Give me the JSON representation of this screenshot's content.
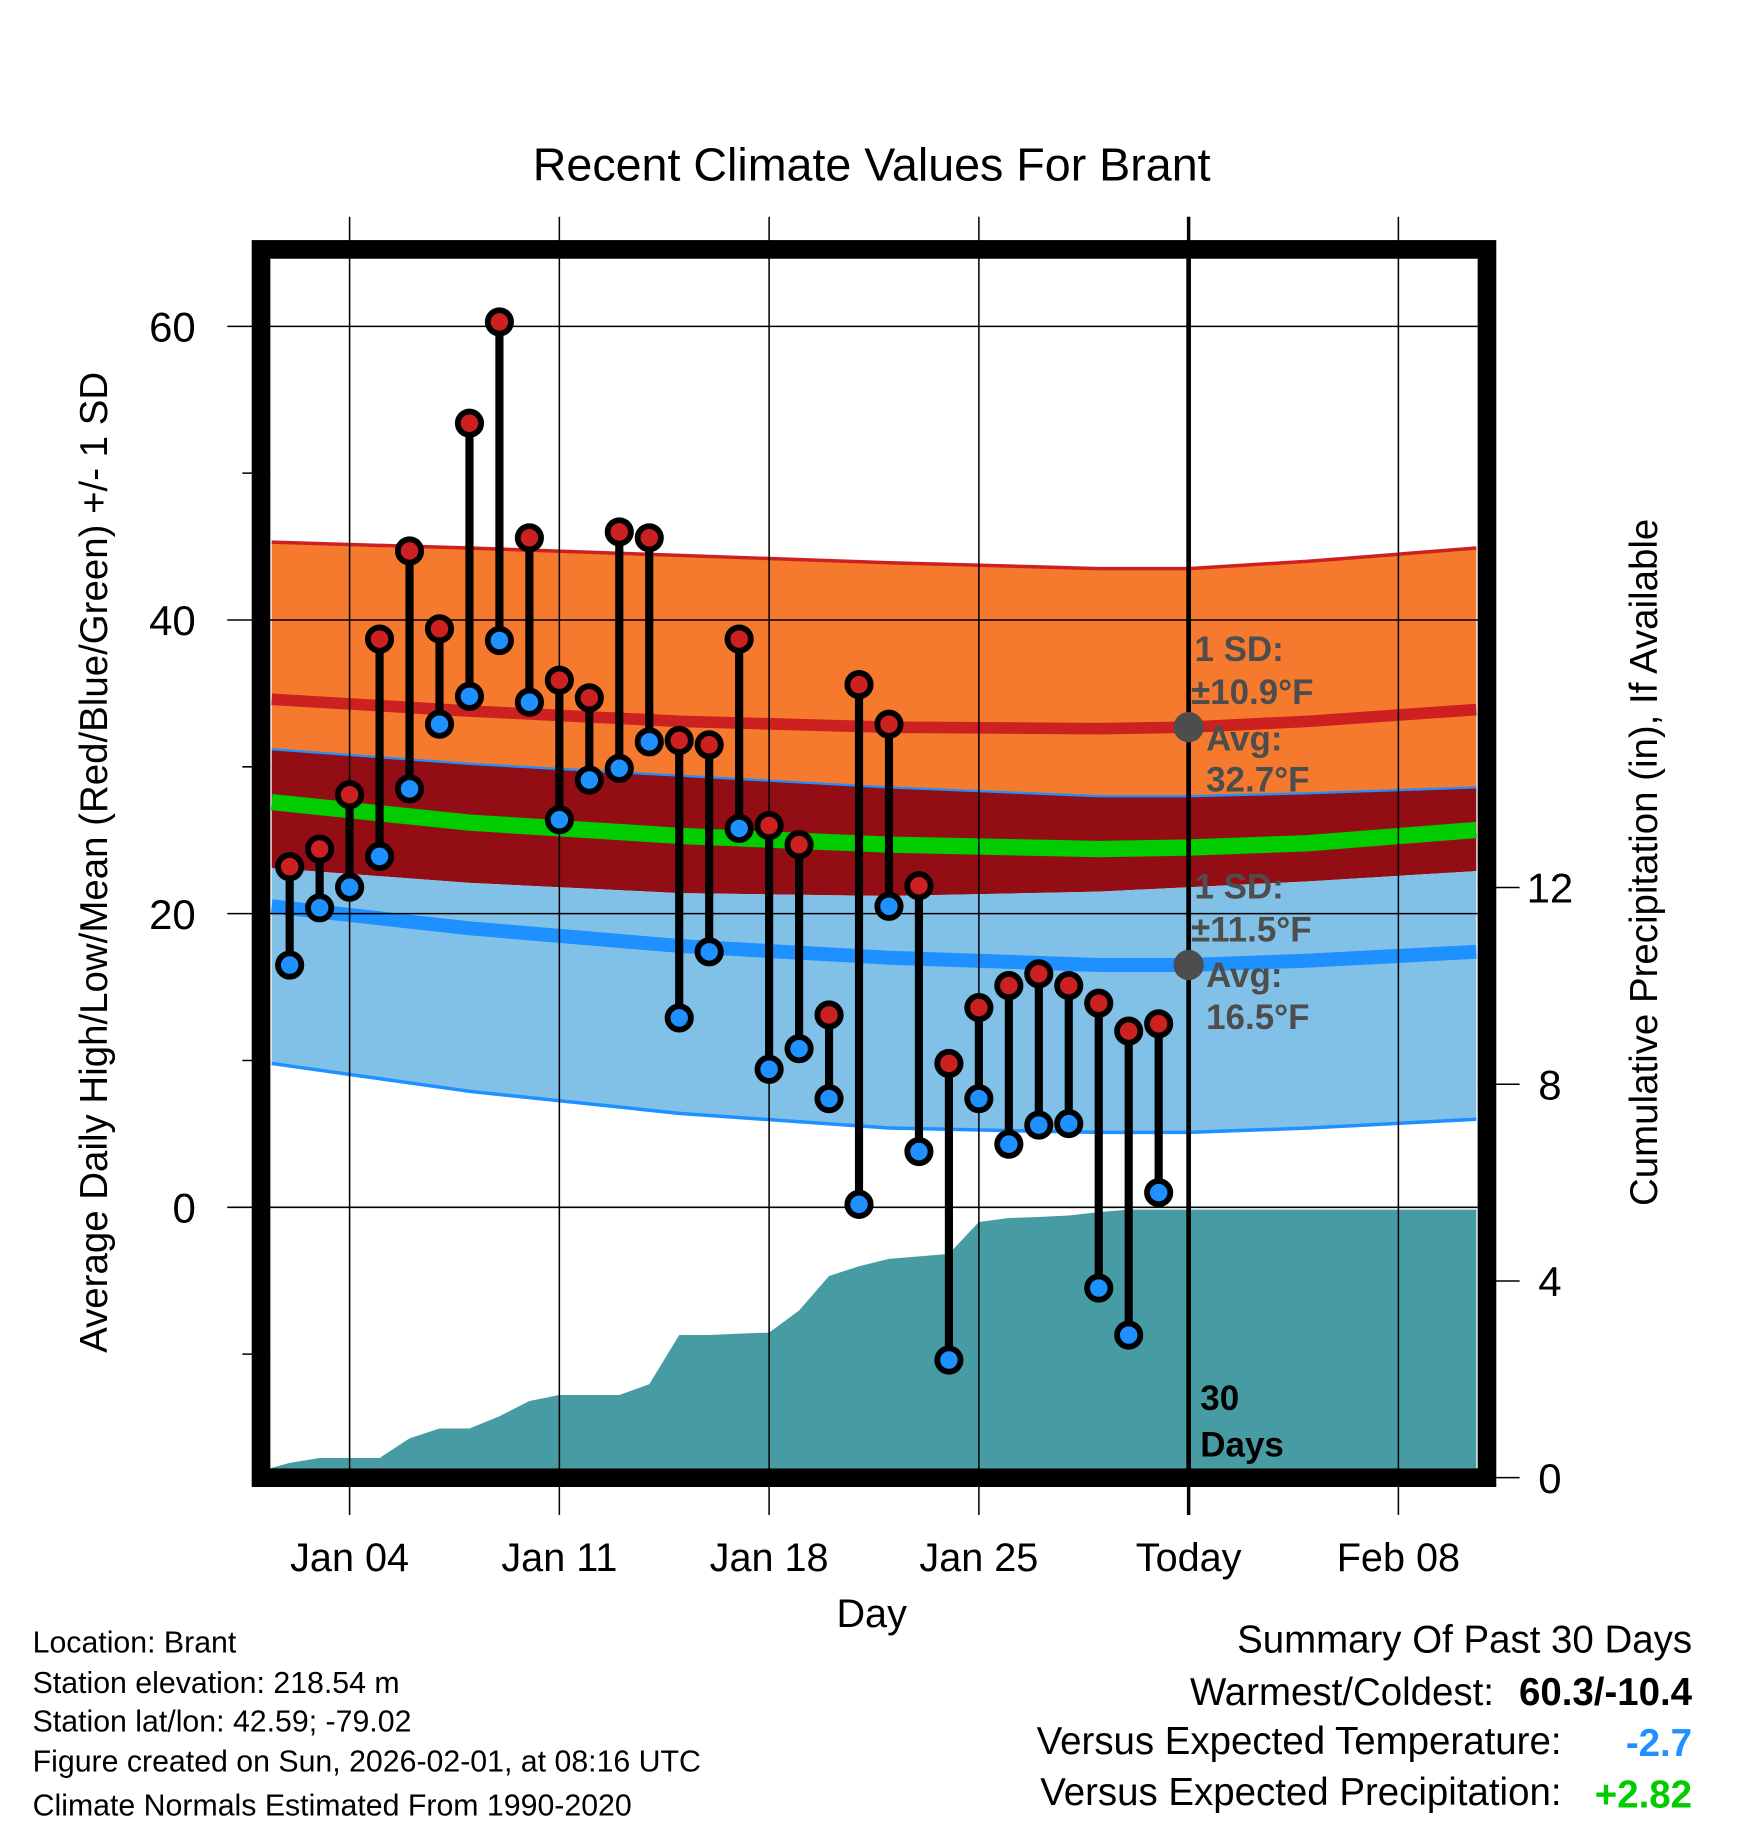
{
  "chart_data": {
    "type": "line",
    "title": "Recent Climate Values For Brant",
    "xlabel": "Day",
    "ylabel": "Average Daily High/Low/Mean (Red/Blue/Green) +/- 1 SD",
    "y2label": "Cumulative Precipitation (in), If Available",
    "ylim": [
      -17.8,
      64.6
    ],
    "y2lim": [
      0,
      24.8
    ],
    "yticks": [
      0,
      20,
      40,
      60
    ],
    "y_minor_ticks": [
      -10,
      10,
      30,
      50
    ],
    "y2ticks": [
      0,
      4,
      8,
      12
    ],
    "x_note": "x values are day of January (32 = Feb 01)",
    "xlim": [
      1.4,
      41.6
    ],
    "xticks": [
      {
        "day": 4,
        "label": "Jan 04"
      },
      {
        "day": 11,
        "label": "Jan 11"
      },
      {
        "day": 18,
        "label": "Jan 18"
      },
      {
        "day": 25,
        "label": "Jan 25"
      },
      {
        "day": 32,
        "label": "Today"
      },
      {
        "day": 39,
        "label": "Feb 08"
      }
    ],
    "days": [
      2,
      3,
      4,
      5,
      6,
      7,
      8,
      9,
      10,
      11,
      12,
      13,
      14,
      15,
      16,
      17,
      18,
      19,
      20,
      21,
      22,
      23,
      24,
      25,
      26,
      27,
      28,
      29,
      30,
      31
    ],
    "highs": [
      23.2,
      24.4,
      28.1,
      38.7,
      44.7,
      39.4,
      53.4,
      60.3,
      45.6,
      35.9,
      34.7,
      46.0,
      45.6,
      31.8,
      31.5,
      38.7,
      26.0,
      24.7,
      13.1,
      35.6,
      32.9,
      21.9,
      9.8,
      13.6,
      15.1,
      15.9,
      15.1,
      13.9,
      12.0,
      12.5
    ],
    "lows": [
      16.5,
      20.4,
      21.8,
      23.9,
      28.5,
      32.9,
      34.8,
      38.6,
      34.4,
      26.4,
      29.1,
      29.9,
      31.7,
      12.9,
      17.4,
      25.8,
      9.4,
      10.8,
      7.4,
      0.2,
      20.5,
      3.8,
      -10.4,
      7.4,
      4.3,
      5.6,
      5.7,
      -5.5,
      -8.7,
      1.0
    ],
    "normals": {
      "days": [
        1.4,
        8,
        15,
        22,
        29,
        32,
        36,
        41.6
      ],
      "high_upper": [
        45.3,
        44.9,
        44.4,
        43.9,
        43.5,
        43.5,
        44.0,
        44.9
      ],
      "high_avg": [
        34.6,
        33.8,
        33.1,
        32.7,
        32.6,
        32.7,
        33.1,
        33.9
      ],
      "high_lower": [
        31.2,
        30.2,
        29.4,
        28.6,
        28.0,
        28.0,
        28.2,
        28.6
      ],
      "mean": [
        27.6,
        26.2,
        25.3,
        24.7,
        24.4,
        24.5,
        24.8,
        25.7
      ],
      "low_upper": [
        23.1,
        22.1,
        21.4,
        21.2,
        21.5,
        21.8,
        22.2,
        22.9
      ],
      "low_avg": [
        20.5,
        19.0,
        17.8,
        17.0,
        16.5,
        16.5,
        16.8,
        17.4
      ],
      "low_lower": [
        9.8,
        7.9,
        6.4,
        5.4,
        5.1,
        5.1,
        5.4,
        6.0
      ]
    },
    "precip": {
      "days": [
        1.4,
        2,
        3,
        4,
        5,
        6,
        7,
        8,
        9,
        10,
        11,
        12,
        13,
        14,
        15,
        16,
        17,
        18,
        19,
        20,
        21,
        22,
        23,
        24,
        25,
        26,
        27,
        28,
        29,
        30,
        31,
        32,
        41.6
      ],
      "cumulative_in": [
        0.2,
        0.3,
        0.4,
        0.4,
        0.4,
        0.8,
        1.0,
        1.0,
        1.25,
        1.56,
        1.68,
        1.68,
        1.68,
        1.9,
        2.9,
        2.9,
        2.93,
        2.95,
        3.4,
        4.1,
        4.3,
        4.45,
        4.5,
        4.55,
        5.2,
        5.28,
        5.3,
        5.33,
        5.4,
        5.45,
        5.45,
        5.45,
        5.45
      ]
    },
    "annotations": {
      "high_sd_label": "1 SD:",
      "high_sd_value": "±10.9°F",
      "high_avg_label": "Avg:",
      "high_avg_value": "32.7°F",
      "high_avg": 32.7,
      "low_sd_label": "1 SD:",
      "low_sd_value": "±11.5°F",
      "low_avg_label": "Avg:",
      "low_avg_value": "16.5°F",
      "low_avg": 16.5,
      "days_label_1": "30",
      "days_label_2": "Days"
    },
    "colors": {
      "orange": "#f57a2e",
      "darkred": "#930d14",
      "red": "#cd2020",
      "lightblue": "#82c1e7",
      "blue": "#1e90ff",
      "green": "#00cc00",
      "teal": "#479ba3"
    }
  },
  "footer_left": [
    "Location: Brant",
    "Station elevation: 218.54 m",
    "Station lat/lon: 42.59; -79.02",
    "Figure created on Sun, 2026-02-01, at 08:16 UTC",
    "Climate Normals Estimated From 1990-2020"
  ],
  "summary": {
    "title": "Summary Of Past 30 Days",
    "warmest_coldest_label": "Warmest/Coldest:",
    "warmest_coldest_value": "60.3/-10.4",
    "temp_label": "Versus Expected Temperature:",
    "temp_value": "-2.7",
    "precip_label": "Versus Expected Precipitation:",
    "precip_value": "+2.82",
    "temp_color": "#1e90ff",
    "precip_color": "#00cc00"
  }
}
